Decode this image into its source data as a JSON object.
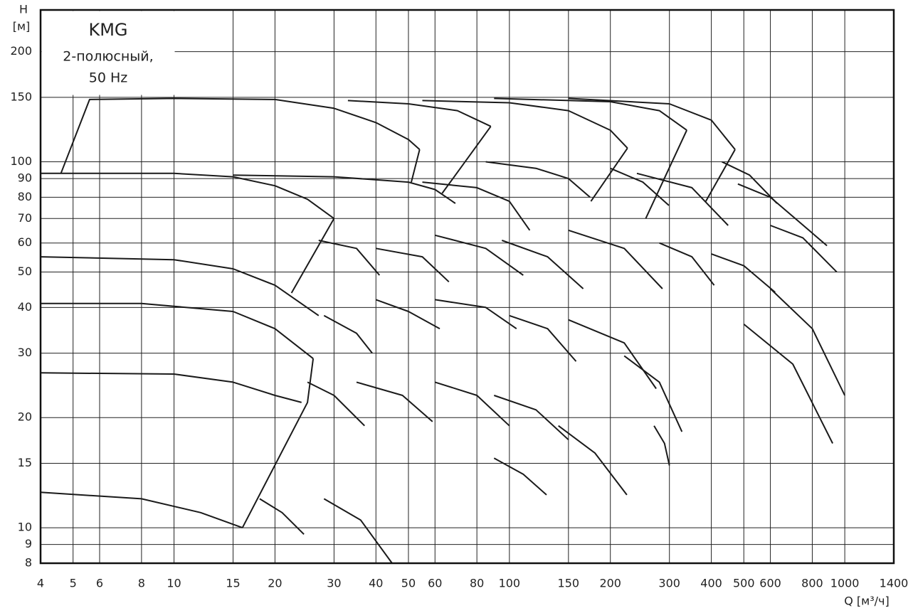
{
  "chart_data": {
    "type": "line",
    "title": "KMG",
    "subtitle": [
      "2-полюсный,",
      "50 Hz"
    ],
    "ylabel": [
      "H",
      "[м]"
    ],
    "xlabel": "Q [м³/ч]",
    "xscale": "log",
    "yscale": "log",
    "grid": true,
    "xlim": [
      4,
      1400
    ],
    "ylim": [
      8,
      260
    ],
    "xticks": [
      4,
      5,
      6,
      8,
      10,
      15,
      20,
      30,
      40,
      50,
      60,
      80,
      100,
      150,
      200,
      300,
      400,
      500,
      600,
      800,
      1000,
      1400
    ],
    "yticks": [
      8,
      9,
      10,
      15,
      20,
      30,
      40,
      50,
      60,
      70,
      80,
      90,
      100,
      150,
      200
    ],
    "series": [
      {
        "color": "#1a1a1a",
        "x": [
          4.6,
          5.6,
          10,
          20,
          30,
          40,
          50,
          54
        ],
        "values": [
          93,
          148,
          149,
          148,
          140,
          128,
          115,
          108
        ]
      },
      {
        "color": "#1a1a1a",
        "x": [
          33,
          50,
          70,
          88
        ],
        "values": [
          147,
          144,
          138,
          125
        ]
      },
      {
        "color": "#1a1a1a",
        "x": [
          55,
          100,
          150,
          200,
          225
        ],
        "values": [
          147,
          145,
          138,
          122,
          109
        ]
      },
      {
        "color": "#1a1a1a",
        "x": [
          90,
          200,
          280,
          338
        ],
        "values": [
          149,
          146,
          138,
          122
        ]
      },
      {
        "color": "#1a1a1a",
        "x": [
          150,
          300,
          400,
          471
        ],
        "values": [
          149,
          144,
          130,
          108
        ]
      },
      {
        "color": "#1a1a1a",
        "x": [
          4,
          10,
          15,
          20,
          25,
          30
        ],
        "values": [
          93,
          93,
          91,
          86,
          79,
          70
        ]
      },
      {
        "color": "#1a1a1a",
        "x": [
          15,
          30,
          50,
          60,
          69
        ],
        "values": [
          92,
          91,
          88,
          84,
          77
        ]
      },
      {
        "color": "#1a1a1a",
        "x": [
          55,
          80,
          100,
          115
        ],
        "values": [
          88,
          85,
          78,
          65
        ]
      },
      {
        "color": "#1a1a1a",
        "x": [
          85,
          120,
          150,
          174
        ],
        "values": [
          100,
          96,
          90,
          80
        ]
      },
      {
        "color": "#1a1a1a",
        "x": [
          200,
          250,
          299
        ],
        "values": [
          96,
          88,
          76
        ]
      },
      {
        "color": "#1a1a1a",
        "x": [
          240,
          350,
          449
        ],
        "values": [
          93,
          85,
          67
        ]
      },
      {
        "color": "#1a1a1a",
        "x": [
          430,
          520,
          628
        ],
        "values": [
          100,
          92,
          77
        ]
      },
      {
        "color": "#1a1a1a",
        "x": [
          480,
          600,
          885
        ],
        "values": [
          87,
          80,
          59
        ]
      },
      {
        "color": "#1a1a1a",
        "x": [
          600,
          750,
          946
        ],
        "values": [
          67,
          62,
          50
        ]
      },
      {
        "color": "#1a1a1a",
        "x": [
          4,
          10,
          15,
          20,
          27
        ],
        "values": [
          55,
          54,
          51,
          46,
          38
        ]
      },
      {
        "color": "#1a1a1a",
        "x": [
          27,
          35,
          41
        ],
        "values": [
          61,
          58,
          49
        ]
      },
      {
        "color": "#1a1a1a",
        "x": [
          40,
          55,
          66
        ],
        "values": [
          58,
          55,
          47
        ]
      },
      {
        "color": "#1a1a1a",
        "x": [
          60,
          85,
          110
        ],
        "values": [
          63,
          58,
          49
        ]
      },
      {
        "color": "#1a1a1a",
        "x": [
          95,
          130,
          166
        ],
        "values": [
          61,
          55,
          45
        ]
      },
      {
        "color": "#1a1a1a",
        "x": [
          150,
          220,
          286
        ],
        "values": [
          65,
          58,
          45
        ]
      },
      {
        "color": "#1a1a1a",
        "x": [
          280,
          350,
          408
        ],
        "values": [
          60,
          55,
          46
        ]
      },
      {
        "color": "#1a1a1a",
        "x": [
          400,
          500,
          620
        ],
        "values": [
          56,
          52,
          44
        ]
      },
      {
        "color": "#1a1a1a",
        "x": [
          600,
          800,
          1000
        ],
        "values": [
          45,
          35,
          23
        ]
      },
      {
        "color": "#1a1a1a",
        "x": [
          500,
          700,
          920
        ],
        "values": [
          36,
          28,
          17
        ]
      },
      {
        "color": "#1a1a1a",
        "x": [
          4,
          8,
          15,
          20,
          26
        ],
        "values": [
          41,
          41,
          39,
          35,
          29
        ]
      },
      {
        "color": "#1a1a1a",
        "x": [
          4,
          10,
          15,
          20,
          24
        ],
        "values": [
          26.5,
          26.3,
          25,
          23,
          22
        ]
      },
      {
        "color": "#1a1a1a",
        "x": [
          4,
          8,
          12,
          16
        ],
        "values": [
          12.5,
          12,
          11,
          10
        ]
      },
      {
        "color": "#1a1a1a",
        "x": [
          28,
          35,
          39
        ],
        "values": [
          38,
          34,
          30
        ]
      },
      {
        "color": "#1a1a1a",
        "x": [
          40,
          50,
          62
        ],
        "values": [
          42,
          39,
          35
        ]
      },
      {
        "color": "#1a1a1a",
        "x": [
          60,
          85,
          105
        ],
        "values": [
          42,
          40,
          35
        ]
      },
      {
        "color": "#1a1a1a",
        "x": [
          100,
          130,
          158
        ],
        "values": [
          38,
          35,
          28.5
        ]
      },
      {
        "color": "#1a1a1a",
        "x": [
          150,
          220,
          274
        ],
        "values": [
          37,
          32,
          24
        ]
      },
      {
        "color": "#1a1a1a",
        "x": [
          25,
          30,
          37
        ],
        "values": [
          25,
          23,
          19
        ]
      },
      {
        "color": "#1a1a1a",
        "x": [
          35,
          48,
          59
        ],
        "values": [
          25,
          23,
          19.5
        ]
      },
      {
        "color": "#1a1a1a",
        "x": [
          60,
          80,
          100
        ],
        "values": [
          25,
          23,
          19
        ]
      },
      {
        "color": "#1a1a1a",
        "x": [
          90,
          120,
          150
        ],
        "values": [
          23,
          21,
          17.4
        ]
      },
      {
        "color": "#1a1a1a",
        "x": [
          220,
          280,
          327
        ],
        "values": [
          29.5,
          25,
          18.3
        ]
      },
      {
        "color": "#1a1a1a",
        "x": [
          270,
          290,
          300
        ],
        "values": [
          19,
          17,
          14.8
        ]
      },
      {
        "color": "#1a1a1a",
        "x": [
          18,
          21,
          24.4
        ],
        "values": [
          12,
          11,
          9.6
        ]
      },
      {
        "color": "#1a1a1a",
        "x": [
          28,
          36,
          44.7
        ],
        "values": [
          12,
          10.5,
          8
        ]
      },
      {
        "color": "#1a1a1a",
        "x": [
          90,
          110,
          129
        ],
        "values": [
          15.5,
          14,
          12.3
        ]
      },
      {
        "color": "#1a1a1a",
        "x": [
          140,
          180,
          224
        ],
        "values": [
          19,
          16,
          12.3
        ]
      },
      {
        "color": "#1a1a1a",
        "x": [
          88,
          63
        ],
        "values": [
          125,
          82
        ]
      },
      {
        "color": "#1a1a1a",
        "x": [
          225,
          175
        ],
        "values": [
          109,
          78
        ]
      },
      {
        "color": "#1a1a1a",
        "x": [
          338,
          255
        ],
        "values": [
          122,
          70
        ]
      },
      {
        "color": "#1a1a1a",
        "x": [
          471,
          385
        ],
        "values": [
          108,
          78
        ]
      },
      {
        "color": "#1a1a1a",
        "x": [
          30,
          22.4
        ],
        "values": [
          70,
          43.8
        ]
      },
      {
        "color": "#1a1a1a",
        "x": [
          54,
          51
        ],
        "values": [
          108,
          88
        ]
      },
      {
        "color": "#1a1a1a",
        "x": [
          16,
          25,
          26
        ],
        "values": [
          10,
          22,
          29
        ]
      }
    ]
  }
}
